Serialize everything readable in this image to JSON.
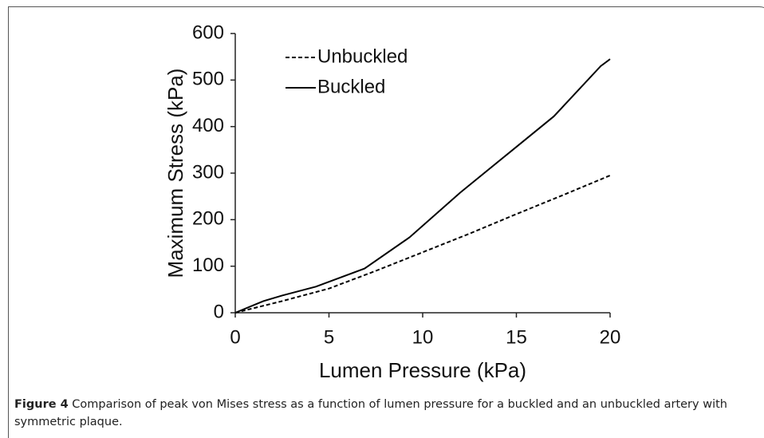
{
  "chart_data": {
    "type": "line",
    "xlabel": "Lumen Pressure (kPa)",
    "ylabel": "Maximum  Stress (kPa)",
    "xlim": [
      0,
      20
    ],
    "xticks": [
      0,
      5,
      10,
      15,
      20
    ],
    "ylim": [
      0,
      600
    ],
    "yticks": [
      0,
      100,
      200,
      300,
      400,
      500,
      600
    ],
    "legend": "upper left",
    "series": [
      {
        "name": "Unbuckled",
        "color": "#000000",
        "line_style": "dashed",
        "x": [
          0,
          2.5,
          5,
          7.5,
          10,
          12.5,
          15,
          17.5,
          20
        ],
        "values": [
          0,
          25,
          52,
          90,
          130,
          170,
          212,
          253,
          295
        ]
      },
      {
        "name": "Buckled",
        "color": "#000000",
        "line_style": "solid",
        "x": [
          0,
          1.5,
          2.5,
          4.3,
          6.9,
          9.3,
          12,
          14.5,
          17,
          19.5,
          20
        ],
        "values": [
          0,
          25,
          37,
          56,
          95,
          162,
          258,
          340,
          422,
          530,
          545
        ]
      }
    ]
  },
  "caption": {
    "label": "Figure 4",
    "text": " Comparison of peak von Mises stress as a function of lumen pressure for a buckled and an unbuckled artery with symmetric plaque."
  }
}
